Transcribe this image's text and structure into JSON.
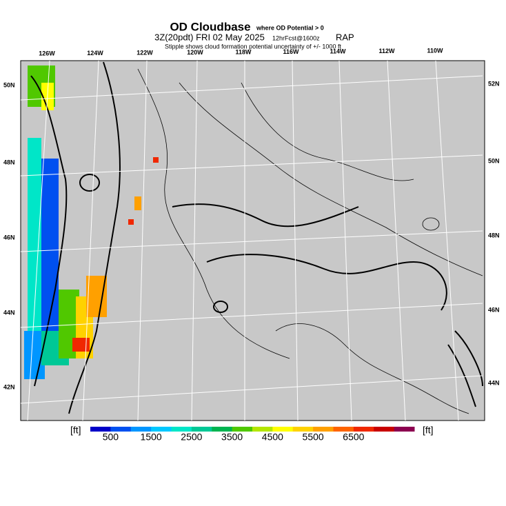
{
  "header": {
    "title": "OD Cloudbase",
    "title_note": "where OD Potential > 0",
    "run": "3Z(20pdt) FRI 02 May 2025",
    "forecast": "12hrFcst@1600z",
    "model": "RAP",
    "stipple_note": "Stipple shows cloud formation potential uncertainty of +/- 1000 ft"
  },
  "map": {
    "lon_labels": [
      "126W",
      "124W",
      "122W",
      "120W",
      "118W",
      "116W",
      "114W",
      "112W",
      "110W"
    ],
    "lat_left": [
      "50N",
      "48N",
      "46N",
      "44N",
      "42N"
    ],
    "lat_right": [
      "52N",
      "50N",
      "48N",
      "46N",
      "44N"
    ]
  },
  "colorbar": {
    "unit_left": "[ft]",
    "unit_right": "[ft]",
    "labels": [
      500,
      1500,
      2500,
      3500,
      4500,
      5500,
      6500
    ],
    "colors": [
      "#0000c8",
      "#0050f0",
      "#0096ff",
      "#00c8ff",
      "#00e6c8",
      "#00c896",
      "#00b450",
      "#50c800",
      "#b4e600",
      "#ffff00",
      "#ffd200",
      "#ffa000",
      "#ff6400",
      "#f02800",
      "#c80000",
      "#8c0050"
    ]
  }
}
